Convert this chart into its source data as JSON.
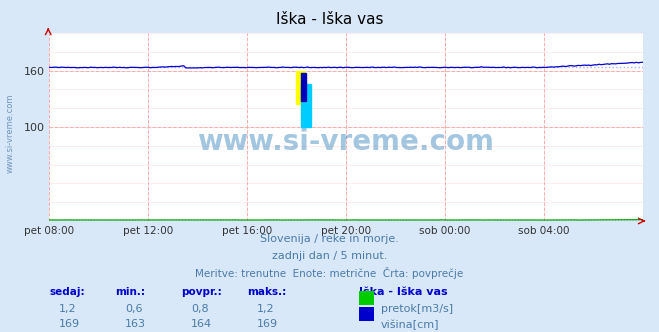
{
  "title": "Iška - Iška vas",
  "background_color": "#d8e8f8",
  "plot_bg_color": "#ffffff",
  "x_labels": [
    "pet 08:00",
    "pet 12:00",
    "pet 16:00",
    "pet 20:00",
    "sob 00:00",
    "sob 04:00"
  ],
  "x_ticks_norm": [
    0.0,
    0.1667,
    0.3333,
    0.5,
    0.6667,
    0.8333
  ],
  "y_min": 0,
  "y_max": 200,
  "visina_avg": 164,
  "visina_min": 163,
  "visina_max": 169,
  "pretok_avg": 0.8,
  "pretok_min": 0.6,
  "pretok_max": 1.2,
  "pretok_current": 1.2,
  "visina_current": 169,
  "line_visina_color": "#0000cc",
  "line_pretok_color": "#00aa00",
  "avg_line_color": "#aaaaff",
  "watermark_text": "www.si-vreme.com",
  "watermark_color": "#4a90c4",
  "subtitle1": "Slovenija / reke in morje.",
  "subtitle2": "zadnji dan / 5 minut.",
  "subtitle3": "Meritve: trenutne  Enote: metrične  Črta: povprečje",
  "footer_color": "#4a7aaa",
  "legend_title": "Iška - Iška vas",
  "legend_pretok_label": "pretok[m3/s]",
  "legend_visina_label": "višina[cm]",
  "table_headers": [
    "sedaj:",
    "min.:",
    "povpr.:",
    "maks.:"
  ],
  "table_pretok": [
    "1,2",
    "0,6",
    "0,8",
    "1,2"
  ],
  "table_visina": [
    "169",
    "163",
    "164",
    "169"
  ],
  "side_text": "www.si-vreme.com",
  "n_points": 288
}
